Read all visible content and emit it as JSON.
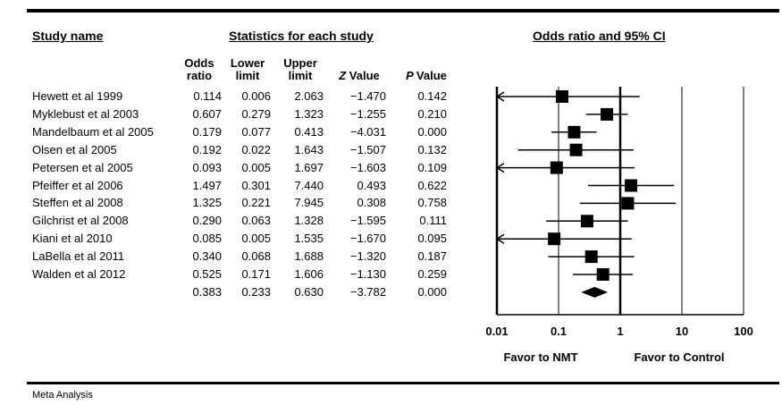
{
  "chart_data": {
    "type": "forest",
    "headers": {
      "study_name": "Study name",
      "statistics": "Statistics for each study",
      "plot_title": "Odds ratio and 95% CI",
      "odds_ratio": [
        "Odds",
        "ratio"
      ],
      "lower_limit": [
        "Lower",
        "limit"
      ],
      "upper_limit": [
        "Upper",
        "limit"
      ],
      "z_value": [
        "Z",
        "Value"
      ],
      "p_value": [
        "P",
        "Value"
      ]
    },
    "studies": [
      {
        "name": "Hewett et al 1999",
        "or": "0.114",
        "lower": "0.006",
        "upper": "2.063",
        "z": "−1.470",
        "p": "0.142",
        "or_v": 0.114,
        "lo_v": 0.006,
        "up_v": 2.063
      },
      {
        "name": "Myklebust et al 2003",
        "or": "0.607",
        "lower": "0.279",
        "upper": "1.323",
        "z": "−1.255",
        "p": "0.210",
        "or_v": 0.607,
        "lo_v": 0.279,
        "up_v": 1.323
      },
      {
        "name": "Mandelbaum et al 2005",
        "or": "0.179",
        "lower": "0.077",
        "upper": "0.413",
        "z": "−4.031",
        "p": "0.000",
        "or_v": 0.179,
        "lo_v": 0.077,
        "up_v": 0.413
      },
      {
        "name": "Olsen et al 2005",
        "or": "0.192",
        "lower": "0.022",
        "upper": "1.643",
        "z": "−1.507",
        "p": "0.132",
        "or_v": 0.192,
        "lo_v": 0.022,
        "up_v": 1.643
      },
      {
        "name": "Petersen et al 2005",
        "or": "0.093",
        "lower": "0.005",
        "upper": "1.697",
        "z": "−1.603",
        "p": "0.109",
        "or_v": 0.093,
        "lo_v": 0.005,
        "up_v": 1.697
      },
      {
        "name": "Pfeiffer et al 2006",
        "or": "1.497",
        "lower": "0.301",
        "upper": "7.440",
        "z": "0.493",
        "p": "0.622",
        "or_v": 1.497,
        "lo_v": 0.301,
        "up_v": 7.44
      },
      {
        "name": "Steffen et al 2008",
        "or": "1.325",
        "lower": "0.221",
        "upper": "7.945",
        "z": "0.308",
        "p": "0.758",
        "or_v": 1.325,
        "lo_v": 0.221,
        "up_v": 7.945
      },
      {
        "name": "Gilchrist et al 2008",
        "or": "0.290",
        "lower": "0.063",
        "upper": "1.328",
        "z": "−1.595",
        "p": "0.111",
        "or_v": 0.29,
        "lo_v": 0.063,
        "up_v": 1.328
      },
      {
        "name": "Kiani et al 2010",
        "or": "0.085",
        "lower": "0.005",
        "upper": "1.535",
        "z": "−1.670",
        "p": "0.095",
        "or_v": 0.085,
        "lo_v": 0.005,
        "up_v": 1.535
      },
      {
        "name": "LaBella et al 2011",
        "or": "0.340",
        "lower": "0.068",
        "upper": "1.688",
        "z": "−1.320",
        "p": "0.187",
        "or_v": 0.34,
        "lo_v": 0.068,
        "up_v": 1.688
      },
      {
        "name": "Walden et al 2012",
        "or": "0.525",
        "lower": "0.171",
        "upper": "1.606",
        "z": "−1.130",
        "p": "0.259",
        "or_v": 0.525,
        "lo_v": 0.171,
        "up_v": 1.606
      }
    ],
    "summary": {
      "or": "0.383",
      "lower": "0.233",
      "upper": "0.630",
      "z": "−3.782",
      "p": "0.000",
      "or_v": 0.383,
      "lo_v": 0.233,
      "up_v": 0.63
    },
    "x_axis": {
      "scale": "log",
      "ticks": [
        "0.01",
        "0.1",
        "1",
        "10",
        "100"
      ],
      "tick_values": [
        0.01,
        0.1,
        1,
        10,
        100
      ]
    },
    "favor_labels": {
      "left": "Favor to NMT",
      "right": "Favor to Control"
    }
  },
  "footer": "Meta Analysis"
}
